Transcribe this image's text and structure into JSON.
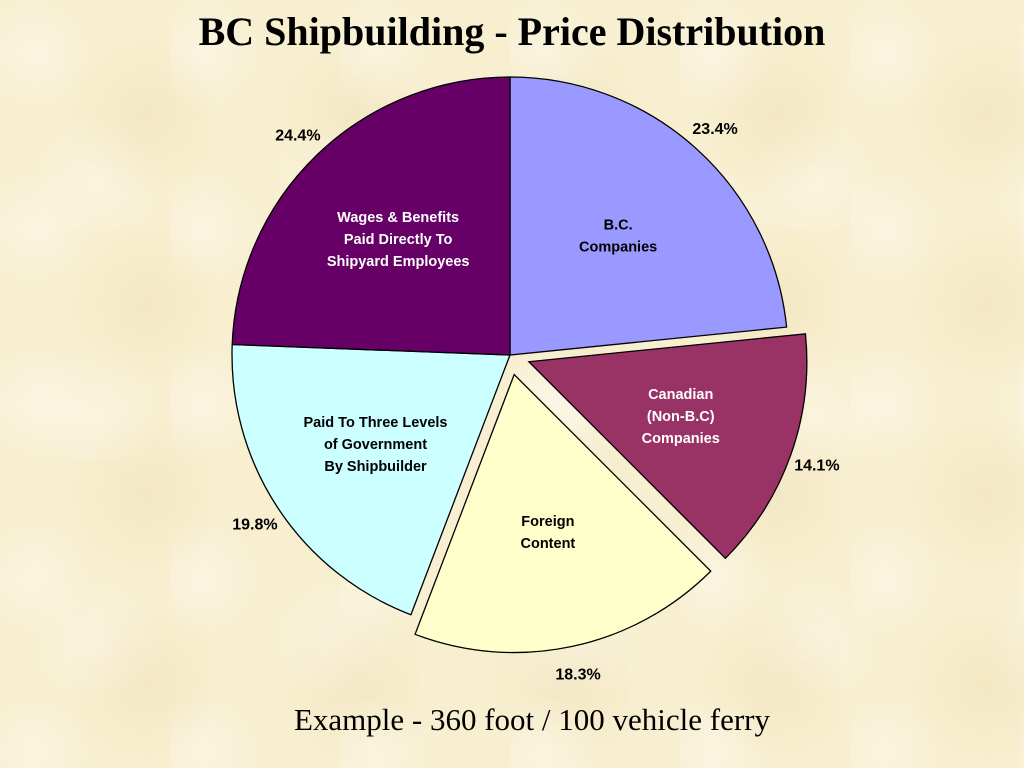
{
  "chart_data": {
    "type": "pie",
    "title": "BC Shipbuilding - Price Distribution",
    "subtitle": "Example - 360 foot / 100 vehicle ferry",
    "slices": [
      {
        "label": [
          "B.C.",
          "Companies"
        ],
        "value": 23.4,
        "value_label": "23.4%",
        "color": "#9999ff",
        "text_color": "#000000",
        "exploded": false
      },
      {
        "label": [
          "Canadian",
          "(Non-B.C)",
          "Companies"
        ],
        "value": 14.1,
        "value_label": "14.1%",
        "color": "#993366",
        "text_color": "#ffffff",
        "exploded": true
      },
      {
        "label": [
          "Foreign",
          "Content"
        ],
        "value": 18.3,
        "value_label": "18.3%",
        "color": "#ffffcc",
        "text_color": "#000000",
        "exploded": true
      },
      {
        "label": [
          "Paid To Three Levels",
          "of Government",
          "By Shipbuilder"
        ],
        "value": 19.8,
        "value_label": "19.8%",
        "color": "#ccffff",
        "text_color": "#000000",
        "exploded": false
      },
      {
        "label": [
          "Wages & Benefits",
          "Paid Directly To",
          "Shipyard Employees"
        ],
        "value": 24.4,
        "value_label": "24.4%",
        "color": "#660066",
        "text_color": "#ffffff",
        "exploded": false
      }
    ]
  }
}
